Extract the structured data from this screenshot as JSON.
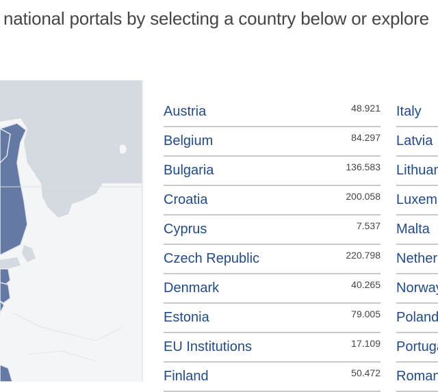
{
  "intro_text": "national portals by selecting a country below or explore",
  "colors": {
    "link": "#1f4a8f",
    "map_selected": "#6479a3",
    "map_sea": "#d5dae0",
    "map_land": "#f4f5f6"
  },
  "countries_left": [
    {
      "name": "Austria",
      "value": "48.921"
    },
    {
      "name": "Belgium",
      "value": "84.297"
    },
    {
      "name": "Bulgaria",
      "value": "136.583"
    },
    {
      "name": "Croatia",
      "value": "200.058"
    },
    {
      "name": "Cyprus",
      "value": "7.537"
    },
    {
      "name": "Czech Republic",
      "value": "220.798"
    },
    {
      "name": "Denmark",
      "value": "40.265"
    },
    {
      "name": "Estonia",
      "value": "79.005"
    },
    {
      "name": "EU Institutions",
      "value": "17.109"
    },
    {
      "name": "Finland",
      "value": "50.472"
    }
  ],
  "countries_right": [
    {
      "name": "Italy"
    },
    {
      "name": "Latvia"
    },
    {
      "name": "Lithuania"
    },
    {
      "name": "Luxembourg"
    },
    {
      "name": "Malta"
    },
    {
      "name": "Netherlands"
    },
    {
      "name": "Norway"
    },
    {
      "name": "Poland"
    },
    {
      "name": "Portugal"
    },
    {
      "name": "Romania"
    }
  ]
}
